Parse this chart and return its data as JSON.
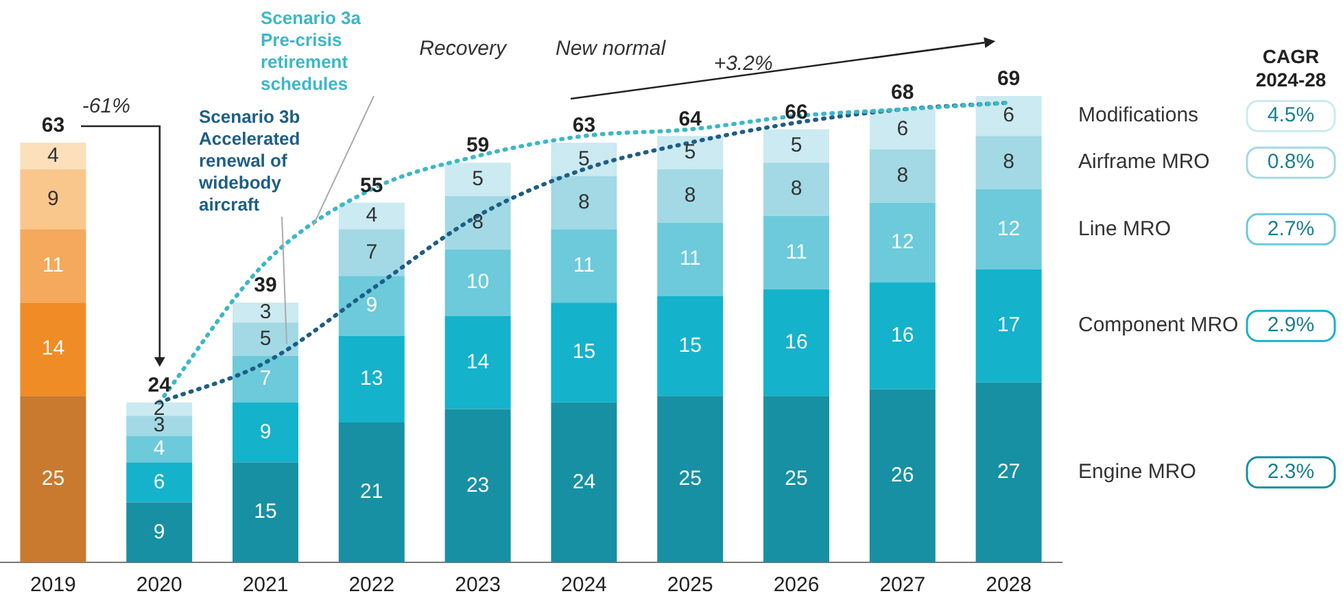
{
  "chart_data": {
    "type": "bar",
    "stacked": true,
    "categories": [
      "2019",
      "2020",
      "2021",
      "2022",
      "2023",
      "2024",
      "2025",
      "2026",
      "2027",
      "2028"
    ],
    "series": [
      {
        "name": "Engine MRO",
        "color": "#1790a3",
        "colors": [
          "#c97a2e",
          "#1790a3",
          "#1790a3",
          "#1790a3",
          "#1790a3",
          "#1790a3",
          "#1790a3",
          "#1790a3",
          "#1790a3",
          "#1790a3"
        ],
        "values": [
          25,
          9,
          15,
          21,
          23,
          24,
          25,
          25,
          26,
          27
        ],
        "value_labels": [
          "25",
          "9",
          "15",
          "21",
          "23",
          "24",
          "25",
          "25",
          "26",
          "27"
        ]
      },
      {
        "name": "Component MRO",
        "color": "#14b2cb",
        "colors": [
          "#f08c25",
          "#14b2cb",
          "#14b2cb",
          "#14b2cb",
          "#14b2cb",
          "#14b2cb",
          "#14b2cb",
          "#14b2cb",
          "#14b2cb",
          "#14b2cb"
        ],
        "values": [
          14,
          6,
          9,
          13,
          14,
          15,
          15,
          16,
          16,
          17
        ],
        "value_labels": [
          "14",
          "6",
          "9",
          "13",
          "14",
          "15",
          "15",
          "16",
          "16",
          "17"
        ]
      },
      {
        "name": "Line MRO",
        "color": "#6ccadb",
        "colors": [
          "#f5a95c",
          "#6ccadb",
          "#6ccadb",
          "#6ccadb",
          "#6ccadb",
          "#6ccadb",
          "#6ccadb",
          "#6ccadb",
          "#6ccadb",
          "#6ccadb"
        ],
        "values": [
          11,
          4,
          7,
          9,
          10,
          11,
          11,
          11,
          12,
          12
        ],
        "value_labels": [
          "11",
          "4",
          "7",
          "9",
          "10",
          "11",
          "11",
          "11",
          "12",
          "12"
        ]
      },
      {
        "name": "Airframe MRO",
        "color": "#a2d9e5",
        "colors": [
          "#f9c78c",
          "#a2d9e5",
          "#a2d9e5",
          "#a2d9e5",
          "#a2d9e5",
          "#a2d9e5",
          "#a2d9e5",
          "#a2d9e5",
          "#a2d9e5",
          "#a2d9e5"
        ],
        "values": [
          9,
          3,
          5,
          7,
          8,
          8,
          8,
          8,
          8,
          8
        ],
        "value_labels": [
          "9",
          "3",
          "5",
          "7",
          "8",
          "8",
          "8",
          "8",
          "8",
          "8"
        ]
      },
      {
        "name": "Modifications",
        "color": "#cbeaf1",
        "colors": [
          "#fcdfbb",
          "#cbeaf1",
          "#cbeaf1",
          "#cbeaf1",
          "#cbeaf1",
          "#cbeaf1",
          "#cbeaf1",
          "#cbeaf1",
          "#cbeaf1",
          "#cbeaf1"
        ],
        "values": [
          4,
          2,
          3,
          4,
          5,
          5,
          5,
          5,
          6,
          6
        ],
        "value_labels": [
          "4",
          "2",
          "3",
          "4",
          "5",
          "5",
          "5",
          "5",
          "6",
          "6"
        ]
      },
      {
        "name": "Scenario 3a Pre-crisis retirement schedules",
        "type": "line",
        "color": "#3db7c8",
        "values": [
          null,
          24,
          45,
          56,
          61,
          64,
          65,
          67,
          68,
          69
        ]
      },
      {
        "name": "Scenario 3b Accelerated renewal of widebody aircraft",
        "type": "line",
        "color": "#1d5e86",
        "values": [
          null,
          24,
          30,
          41,
          52,
          59,
          63,
          66,
          68,
          69
        ]
      }
    ],
    "marker": "none",
    "line_style": "dotted",
    "totals": [
      "63",
      "24",
      "39",
      "55",
      "59",
      "63",
      "64",
      "66",
      "68",
      "69"
    ],
    "tick_labels": "x",
    "grid": false,
    "legend": "right",
    "annotations": [
      "-61%",
      "+3.2%",
      "Recovery",
      "New normal",
      "CAGR 2024-28",
      "4.5%",
      "0.8%",
      "2.7%",
      "2.9%",
      "2.3%"
    ]
  }
}
